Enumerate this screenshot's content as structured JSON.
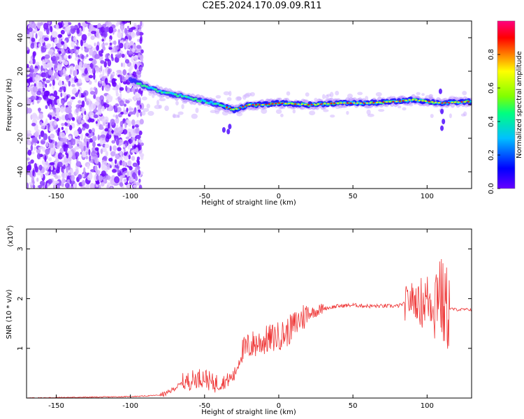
{
  "title": "C2E5.2024.170.09.09.R11",
  "chart_data": [
    {
      "type": "heatmap",
      "name": "spectrogram",
      "title": "C2E5.2024.170.09.09.R11",
      "xlabel": "Height of straight line (km)",
      "ylabel": "Frequency (Hz)",
      "xlim": [
        -170,
        130
      ],
      "ylim": [
        -50,
        50
      ],
      "x_ticks": [
        -150,
        -100,
        -50,
        0,
        50,
        100
      ],
      "y_ticks": [
        -40,
        -20,
        0,
        20,
        40
      ],
      "colorbar": {
        "label": "Normalized spectral amplitude",
        "range": [
          0,
          1
        ],
        "ticks": [
          "0.0",
          "0.2",
          "0.4",
          "0.6",
          "0.8"
        ],
        "colormap": [
          "#6600ff",
          "#0000ff",
          "#00c0ff",
          "#00ff80",
          "#80ff00",
          "#ffff00",
          "#ff8000",
          "#ff0000",
          "#ff0080"
        ]
      },
      "ridge": {
        "x": [
          -100,
          -90,
          -80,
          -70,
          -60,
          -50,
          -40,
          -30,
          -20,
          -10,
          0,
          20,
          40,
          60,
          80,
          90,
          100,
          110,
          130
        ],
        "y": [
          15,
          11,
          8,
          6,
          4,
          2,
          0,
          -3,
          0,
          0,
          1,
          0,
          1,
          1,
          2,
          3,
          2,
          1,
          2
        ]
      }
    },
    {
      "type": "line",
      "name": "snr",
      "xlabel": "Height of straight line (km)",
      "ylabel": "SNR (10 * v/v)",
      "y_multiplier": "(x10",
      "y_multiplier_exp": "4",
      "y_multiplier_close": ")",
      "xlim": [
        -170,
        130
      ],
      "ylim": [
        0,
        3.4
      ],
      "x_ticks": [
        -150,
        -100,
        -50,
        0,
        50,
        100
      ],
      "y_ticks": [
        1,
        2,
        3
      ],
      "color": "#ee3333",
      "series": [
        {
          "x": [
            -170,
            -150,
            -120,
            -100,
            -90,
            -80,
            -75,
            -70,
            -65,
            -60,
            -55,
            -50,
            -45,
            -40,
            -35,
            -30,
            -25,
            -20,
            -15,
            -10,
            -5,
            0,
            5,
            10,
            15,
            20,
            25,
            30,
            40,
            50,
            60,
            70,
            80,
            85,
            90,
            95,
            100,
            105,
            108,
            110,
            112,
            115,
            120,
            130
          ],
          "y": [
            0.0,
            0.01,
            0.02,
            0.03,
            0.04,
            0.06,
            0.1,
            0.2,
            0.3,
            0.35,
            0.4,
            0.42,
            0.3,
            0.3,
            0.35,
            0.45,
            0.9,
            1.05,
            1.1,
            1.15,
            1.2,
            1.25,
            1.3,
            1.45,
            1.6,
            1.7,
            1.75,
            1.8,
            1.85,
            1.87,
            1.85,
            1.85,
            1.85,
            1.9,
            2.0,
            1.9,
            2.0,
            1.9,
            2.4,
            1.9,
            1.8,
            1.8,
            1.78,
            1.78
          ]
        }
      ]
    }
  ]
}
